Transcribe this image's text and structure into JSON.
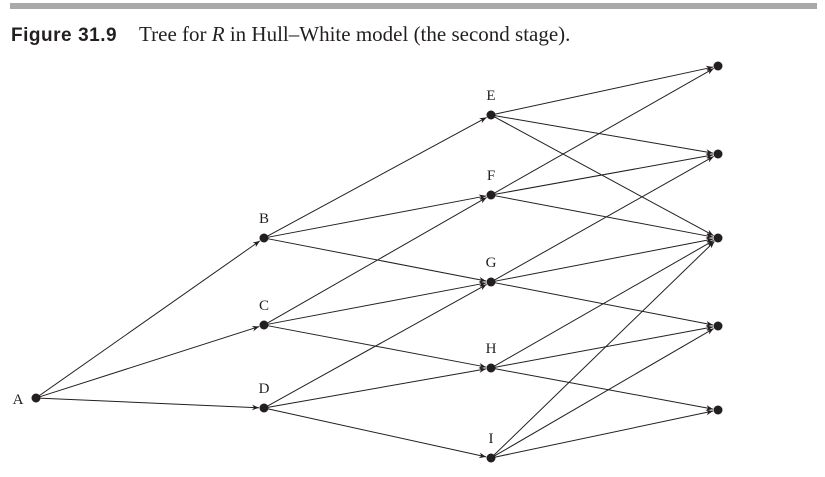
{
  "caption": {
    "label": "Figure",
    "number": "31.9",
    "title_pre": "Tree for ",
    "title_var": "R",
    "title_post": " in Hull–White model (the second stage)."
  },
  "colors": {
    "rule": "#a9a9a9",
    "ink": "#231f20"
  },
  "tree": {
    "nodes": [
      {
        "id": "A",
        "label": "A"
      },
      {
        "id": "B",
        "label": "B"
      },
      {
        "id": "C",
        "label": "C"
      },
      {
        "id": "D",
        "label": "D"
      },
      {
        "id": "E",
        "label": "E"
      },
      {
        "id": "F",
        "label": "F"
      },
      {
        "id": "G",
        "label": "G"
      },
      {
        "id": "H",
        "label": "H"
      },
      {
        "id": "I",
        "label": "I"
      },
      {
        "id": "T1",
        "label": ""
      },
      {
        "id": "T2",
        "label": ""
      },
      {
        "id": "T3",
        "label": ""
      },
      {
        "id": "T4",
        "label": ""
      },
      {
        "id": "T5",
        "label": ""
      }
    ],
    "edges": [
      [
        "A",
        "B"
      ],
      [
        "A",
        "C"
      ],
      [
        "A",
        "D"
      ],
      [
        "B",
        "E"
      ],
      [
        "B",
        "F"
      ],
      [
        "B",
        "G"
      ],
      [
        "C",
        "F"
      ],
      [
        "C",
        "G"
      ],
      [
        "C",
        "H"
      ],
      [
        "D",
        "G"
      ],
      [
        "D",
        "H"
      ],
      [
        "D",
        "I"
      ],
      [
        "E",
        "T1"
      ],
      [
        "E",
        "T2"
      ],
      [
        "E",
        "T3"
      ],
      [
        "F",
        "T1"
      ],
      [
        "F",
        "T2"
      ],
      [
        "F",
        "T3"
      ],
      [
        "G",
        "T2"
      ],
      [
        "G",
        "T3"
      ],
      [
        "G",
        "T4"
      ],
      [
        "H",
        "T3"
      ],
      [
        "H",
        "T4"
      ],
      [
        "H",
        "T5"
      ],
      [
        "I",
        "T3"
      ],
      [
        "I",
        "T4"
      ],
      [
        "I",
        "T5"
      ]
    ]
  }
}
